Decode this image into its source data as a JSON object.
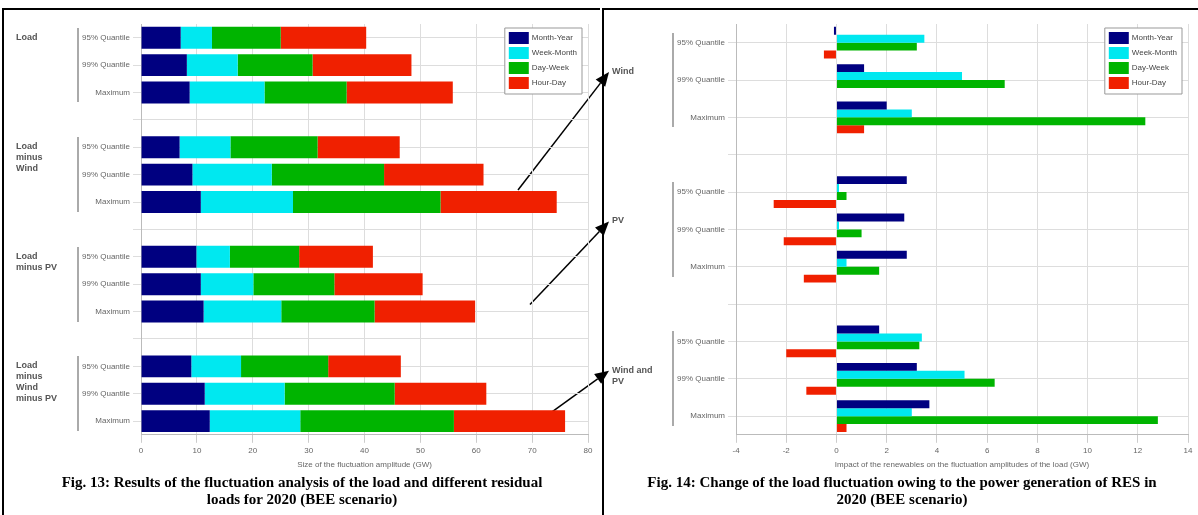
{
  "chart_data": [
    {
      "type": "bar",
      "orientation": "horizontal",
      "stacked": true,
      "title": "Fig. 13: Results of the fluctuation analysis of the load and different residual loads for 2020 (BEE scenario)",
      "xlabel": "Size of the fluctuation amplitude (GW)",
      "categories": [
        "95% Quantile",
        "99% Quantile",
        "Maximum",
        null,
        "95% Quantile",
        "99% Quantile",
        "Maximum",
        null,
        "95% Quantile",
        "99% Quantile",
        "Maximum",
        null,
        "95% Quantile",
        "99% Quantile",
        "Maximum"
      ],
      "series": [
        {
          "name": "Month-Year",
          "color": "#000080",
          "values": [
            7.1,
            8.2,
            8.7,
            null,
            6.9,
            9.2,
            10.7,
            null,
            9.9,
            10.7,
            11.2,
            null,
            9.0,
            11.4,
            12.3
          ]
        },
        {
          "name": "Week-Month",
          "color": "#00e8f0",
          "values": [
            5.6,
            9.1,
            13.4,
            null,
            9.1,
            14.2,
            16.5,
            null,
            6.0,
            9.4,
            13.9,
            null,
            8.9,
            14.3,
            16.2
          ]
        },
        {
          "name": "Day-Week",
          "color": "#00b400",
          "values": [
            12.3,
            13.4,
            14.7,
            null,
            15.6,
            20.1,
            26.4,
            null,
            12.4,
            14.5,
            16.7,
            null,
            15.6,
            19.7,
            27.5
          ]
        },
        {
          "name": "Hour-Day",
          "color": "#f02000",
          "values": [
            15.3,
            17.7,
            19.0,
            null,
            14.7,
            17.8,
            20.8,
            null,
            13.2,
            15.8,
            18.0,
            null,
            13.0,
            16.4,
            19.9
          ]
        }
      ],
      "xlim": [
        0,
        80
      ],
      "xticks": [
        0,
        10,
        20,
        30,
        40,
        50,
        60,
        70,
        80
      ],
      "grid": true,
      "legend": "top right",
      "annotations": [
        "Load",
        "Load minus Wind",
        "Load minus PV",
        "Load minus Wind minus PV"
      ]
    },
    {
      "type": "bar",
      "orientation": "horizontal",
      "title": "Fig. 14: Change of the load fluctuation owing to the power generation of RES in 2020 (BEE scenario)",
      "xlabel": "Impact of the renewables on the fluctuation amplitudes of the load (GW)",
      "categories": [
        "95% Quantile",
        "99% Quantile",
        "Maximum",
        null,
        "95% Quantile",
        "99% Quantile",
        "Maximum",
        null,
        "95% Quantile",
        "99% Quantile",
        "Maximum"
      ],
      "series": [
        {
          "name": "Month-Year",
          "color": "#000080",
          "values": [
            -0.1,
            1.1,
            2.0,
            null,
            2.8,
            2.7,
            2.8,
            null,
            1.7,
            3.2,
            3.7
          ]
        },
        {
          "name": "Week-Month",
          "color": "#00e8f0",
          "values": [
            3.5,
            5.0,
            3.0,
            null,
            0.1,
            0.1,
            0.4,
            null,
            3.4,
            5.1,
            3.0
          ]
        },
        {
          "name": "Day-Week",
          "color": "#00b400",
          "values": [
            3.2,
            6.7,
            12.3,
            null,
            0.4,
            1.0,
            1.7,
            null,
            3.3,
            6.3,
            12.8
          ]
        },
        {
          "name": "Hour-Day",
          "color": "#f02000",
          "values": [
            -0.5,
            0,
            1.1,
            null,
            -2.5,
            -2.1,
            -1.3,
            null,
            -2.0,
            -1.2,
            0.4
          ]
        }
      ],
      "xlim": [
        -4,
        14
      ],
      "xticks": [
        -4,
        -2,
        0,
        2,
        4,
        6,
        8,
        10,
        12,
        14
      ],
      "grid": true,
      "legend": "top right",
      "annotations": [
        "Wind",
        "PV",
        "Wind and PV"
      ]
    }
  ]
}
